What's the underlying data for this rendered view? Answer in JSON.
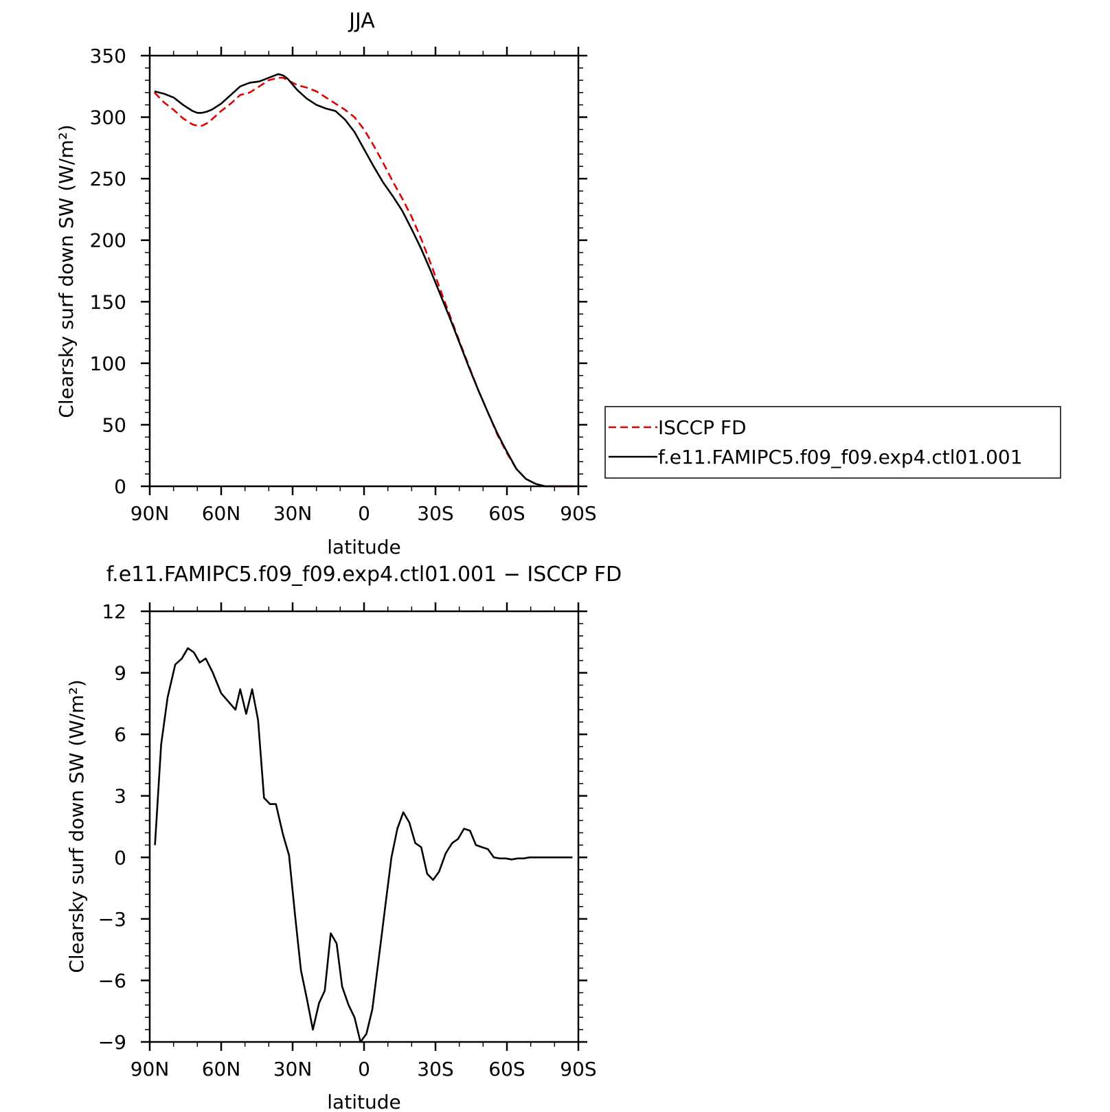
{
  "chart_data": [
    {
      "type": "line",
      "title": "JJA",
      "xlabel": "latitude",
      "ylabel": "Clearsky surf down SW (W/m²)",
      "xlim": [
        90,
        -90
      ],
      "ylim": [
        0,
        350
      ],
      "xticks": [
        90,
        60,
        30,
        0,
        -30,
        -60,
        -90
      ],
      "xtick_labels": [
        "90N",
        "60N",
        "30N",
        "0",
        "30S",
        "60S",
        "90S"
      ],
      "yticks": [
        0,
        50,
        100,
        150,
        200,
        250,
        300,
        350
      ],
      "ytick_labels": [
        "0",
        "50",
        "100",
        "150",
        "200",
        "250",
        "300",
        "350"
      ],
      "legend_position": "right",
      "series": [
        {
          "name": "ISCCP FD",
          "color": "#e00000",
          "dash": "dashed",
          "x": [
            88,
            84,
            80,
            76,
            72,
            70,
            68,
            66,
            64,
            60,
            56,
            52,
            48,
            44,
            40,
            36,
            34,
            32,
            28,
            24,
            20,
            16,
            12,
            8,
            4,
            0,
            -4,
            -8,
            -12,
            -16,
            -20,
            -24,
            -28,
            -32,
            -36,
            -40,
            -44,
            -48,
            -52,
            -56,
            -60,
            -64,
            -68,
            -72,
            -76,
            -80,
            -84,
            -88
          ],
          "values": [
            320,
            312,
            306,
            299,
            294,
            293,
            293,
            295,
            298,
            305,
            311,
            318,
            320,
            325,
            330,
            332,
            332,
            330,
            326,
            324,
            321,
            316,
            311,
            306,
            300,
            290,
            277,
            263,
            248,
            234,
            219,
            201,
            181,
            160,
            139,
            118,
            98,
            78,
            60,
            42,
            27,
            14,
            6,
            2,
            0,
            0,
            0,
            0
          ]
        },
        {
          "name": "f.e11.FAMIPC5.f09_f09.exp4.ctl01.001",
          "color": "#000000",
          "dash": "solid",
          "x": [
            88,
            84,
            80,
            76,
            72,
            70,
            68,
            66,
            64,
            60,
            56,
            52,
            48,
            44,
            40,
            36,
            34,
            32,
            28,
            24,
            20,
            16,
            12,
            8,
            4,
            0,
            -4,
            -8,
            -12,
            -16,
            -20,
            -24,
            -28,
            -32,
            -36,
            -40,
            -44,
            -48,
            -52,
            -56,
            -60,
            -64,
            -68,
            -72,
            -76,
            -80,
            -84,
            -88
          ],
          "values": [
            321,
            319,
            316,
            310,
            305,
            303.5,
            303.5,
            304.5,
            306,
            311,
            318,
            325,
            328,
            329,
            332,
            335,
            334,
            331,
            322,
            315,
            310,
            307,
            305,
            298,
            288,
            274,
            260,
            247,
            236,
            224,
            209,
            193,
            175,
            156,
            137,
            117,
            97,
            78,
            60,
            43,
            28,
            14,
            6,
            2,
            0,
            0,
            0,
            0
          ]
        }
      ]
    },
    {
      "type": "line",
      "title": "f.e11.FAMIPC5.f09_f09.exp4.ctl01.001 − ISCCP FD",
      "xlabel": "latitude",
      "ylabel": "Clearsky surf down SW (W/m²)",
      "xlim": [
        90,
        -90
      ],
      "ylim": [
        -9,
        12
      ],
      "xticks": [
        90,
        60,
        30,
        0,
        -30,
        -60,
        -90
      ],
      "xtick_labels": [
        "90N",
        "60N",
        "30N",
        "0",
        "30S",
        "60S",
        "90S"
      ],
      "yticks": [
        -9,
        -6,
        -3,
        0,
        3,
        6,
        9,
        12
      ],
      "ytick_labels": [
        "−9",
        "−6",
        "−3",
        "0",
        "3",
        "6",
        "9",
        "12"
      ],
      "series": [
        {
          "color": "#000000",
          "dash": "solid",
          "x": [
            87.8,
            85.2,
            82.5,
            79.3,
            76.5,
            74.0,
            71.5,
            69.0,
            66.5,
            63.5,
            60.0,
            57.0,
            54.0,
            52.0,
            49.5,
            47.0,
            44.5,
            42.0,
            39.5,
            37.0,
            34.0,
            31.5,
            29.0,
            26.5,
            24.0,
            21.5,
            18.9,
            16.5,
            14.0,
            11.5,
            9.2,
            6.5,
            4.0,
            1.5,
            -1.0,
            -3.5,
            -6.0,
            -9.0,
            -11.5,
            -14.0,
            -16.5,
            -19.0,
            -21.5,
            -24.0,
            -26.5,
            -29.0,
            -31.5,
            -34.3,
            -37.0,
            -39.5,
            -42.0,
            -44.5,
            -47.0,
            -49.5,
            -52.0,
            -54.5,
            -57.0,
            -59.5,
            -62.0,
            -64.5,
            -67.0,
            -69.5,
            -72.0,
            -74.5,
            -77.0,
            -79.5,
            -82.0,
            -84.5,
            -87.5
          ],
          "values": [
            0.6,
            5.5,
            7.8,
            9.4,
            9.7,
            10.2,
            10.0,
            9.5,
            9.7,
            9.0,
            8.0,
            7.6,
            7.2,
            8.2,
            7.0,
            8.2,
            6.7,
            2.9,
            2.6,
            2.6,
            1.1,
            0.1,
            -2.8,
            -5.5,
            -6.9,
            -8.4,
            -7.1,
            -6.5,
            -3.7,
            -4.2,
            -6.3,
            -7.2,
            -7.8,
            -9.0,
            -8.6,
            -7.4,
            -5.1,
            -2.3,
            0.0,
            1.4,
            2.2,
            1.7,
            0.7,
            0.5,
            -0.8,
            -1.1,
            -0.7,
            0.2,
            0.7,
            0.9,
            1.4,
            1.3,
            0.6,
            0.5,
            0.4,
            0.0,
            -0.05,
            -0.05,
            -0.1,
            -0.05,
            -0.05,
            0.0,
            0.0,
            0.0,
            0.0,
            0.0,
            0.0,
            0.0,
            0.0
          ]
        }
      ]
    }
  ]
}
